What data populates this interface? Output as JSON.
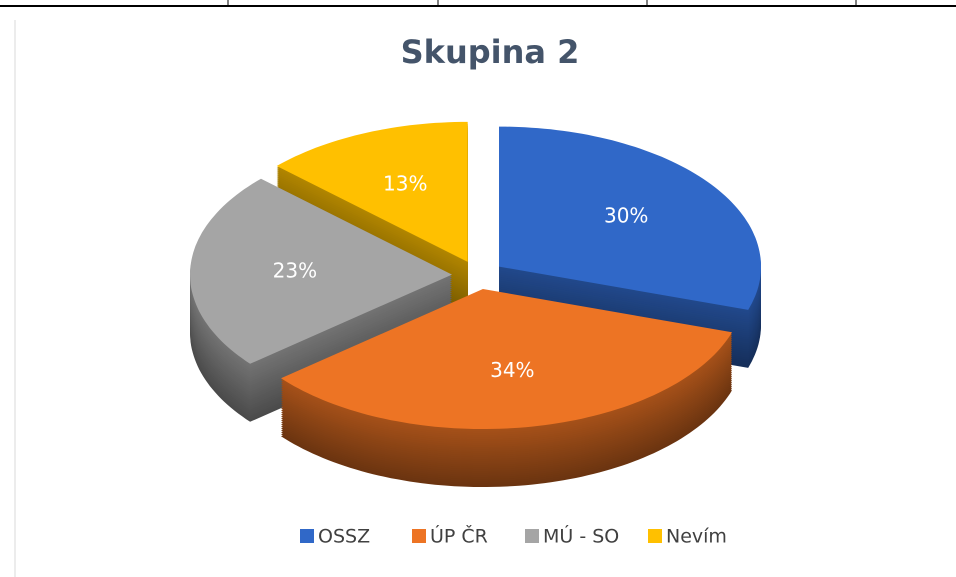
{
  "chart_data": {
    "type": "pie",
    "title": "Skupina 2",
    "categories": [
      "OSSZ",
      "ÚP ČR",
      "MÚ - SO",
      "Nevím"
    ],
    "values": [
      30,
      34,
      23,
      13
    ],
    "value_labels": [
      "30%",
      "34%",
      "23%",
      "13%"
    ],
    "colors": [
      "#3068c8",
      "#ed7424",
      "#a5a5a5",
      "#ffc000"
    ],
    "legend": "bottom"
  }
}
